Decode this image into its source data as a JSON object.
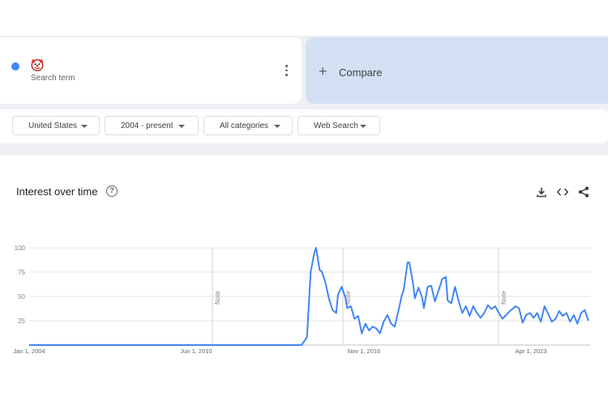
{
  "search_term": {
    "emoji": "🤡",
    "label": "Search term",
    "color": "#4285f4"
  },
  "compare": {
    "icon": "plus-icon",
    "label": "Compare"
  },
  "filters": [
    {
      "label": "United States"
    },
    {
      "label": "2004 - present"
    },
    {
      "label": "All categories"
    },
    {
      "label": "Web Search"
    }
  ],
  "chart_section": {
    "title": "Interest over time",
    "icons": [
      "help-icon",
      "download-icon",
      "embed-icon",
      "share-icon"
    ]
  },
  "chart_data": {
    "type": "line",
    "ylim": [
      0,
      100
    ],
    "y_ticks": [
      "100",
      "75",
      "50",
      "25"
    ],
    "x_tick_labels": [
      "Jan 1, 2004",
      "Jun 1, 2010",
      "Nov 1, 2016",
      "Apr 1, 2023"
    ],
    "notes": [
      "Note",
      "Note",
      "Note"
    ],
    "grid": true,
    "series": [
      {
        "color": "#4285f4",
        "points": [
          [
            "2004-01",
            0
          ],
          [
            "2010-01",
            0
          ],
          [
            "2015-09",
            0
          ],
          [
            "2016-06",
            0
          ],
          [
            "2016-09",
            8
          ],
          [
            "2016-11",
            75
          ],
          [
            "2017-01",
            95
          ],
          [
            "2017-02",
            100
          ],
          [
            "2017-04",
            77
          ],
          [
            "2017-05",
            76
          ],
          [
            "2017-07",
            65
          ],
          [
            "2017-09",
            48
          ],
          [
            "2017-11",
            36
          ],
          [
            "2018-01",
            33
          ],
          [
            "2018-02",
            52
          ],
          [
            "2018-04",
            60
          ],
          [
            "2018-06",
            49
          ],
          [
            "2018-07",
            38
          ],
          [
            "2018-09",
            40
          ],
          [
            "2018-11",
            27
          ],
          [
            "2019-01",
            30
          ],
          [
            "2019-03",
            12
          ],
          [
            "2019-05",
            22
          ],
          [
            "2019-07",
            15
          ],
          [
            "2019-09",
            19
          ],
          [
            "2019-11",
            17
          ],
          [
            "2020-01",
            12
          ],
          [
            "2020-03",
            24
          ],
          [
            "2020-05",
            31
          ],
          [
            "2020-07",
            22
          ],
          [
            "2020-09",
            19
          ],
          [
            "2020-11",
            35
          ],
          [
            "2021-01",
            52
          ],
          [
            "2021-02",
            57
          ],
          [
            "2021-04",
            85
          ],
          [
            "2021-05",
            85
          ],
          [
            "2021-07",
            64
          ],
          [
            "2021-08",
            48
          ],
          [
            "2021-10",
            59
          ],
          [
            "2021-12",
            49
          ],
          [
            "2022-01",
            38
          ],
          [
            "2022-03",
            60
          ],
          [
            "2022-05",
            61
          ],
          [
            "2022-07",
            45
          ],
          [
            "2022-09",
            56
          ],
          [
            "2022-11",
            68
          ],
          [
            "2023-01",
            70
          ],
          [
            "2023-02",
            46
          ],
          [
            "2023-04",
            43
          ],
          [
            "2023-06",
            60
          ],
          [
            "2023-08",
            45
          ],
          [
            "2023-10",
            33
          ],
          [
            "2023-12",
            40
          ],
          [
            "2024-02",
            30
          ],
          [
            "2024-04",
            40
          ],
          [
            "2024-06",
            33
          ],
          [
            "2024-08",
            28
          ],
          [
            "2024-10",
            33
          ],
          [
            "2024-12",
            41
          ],
          [
            "2025-02",
            37
          ],
          [
            "2025-04",
            40
          ],
          [
            "2025-06",
            33
          ],
          [
            "2025-08",
            27
          ],
          [
            "2025-10",
            31
          ],
          [
            "2025-12",
            35
          ],
          [
            "2026-02",
            38
          ],
          [
            "2026-03",
            40
          ],
          [
            "2026-05",
            38
          ],
          [
            "2026-07",
            23
          ],
          [
            "2026-09",
            31
          ],
          [
            "2026-11",
            33
          ],
          [
            "2027-01",
            28
          ],
          [
            "2027-03",
            33
          ],
          [
            "2027-05",
            24
          ],
          [
            "2027-07",
            40
          ],
          [
            "2027-09",
            32
          ],
          [
            "2027-11",
            24
          ],
          [
            "2028-01",
            27
          ],
          [
            "2028-03",
            35
          ],
          [
            "2028-05",
            30
          ],
          [
            "2028-07",
            33
          ],
          [
            "2028-09",
            24
          ],
          [
            "2028-11",
            31
          ],
          [
            "2029-01",
            22
          ],
          [
            "2029-03",
            33
          ],
          [
            "2029-05",
            36
          ],
          [
            "2029-07",
            25
          ]
        ]
      }
    ]
  }
}
